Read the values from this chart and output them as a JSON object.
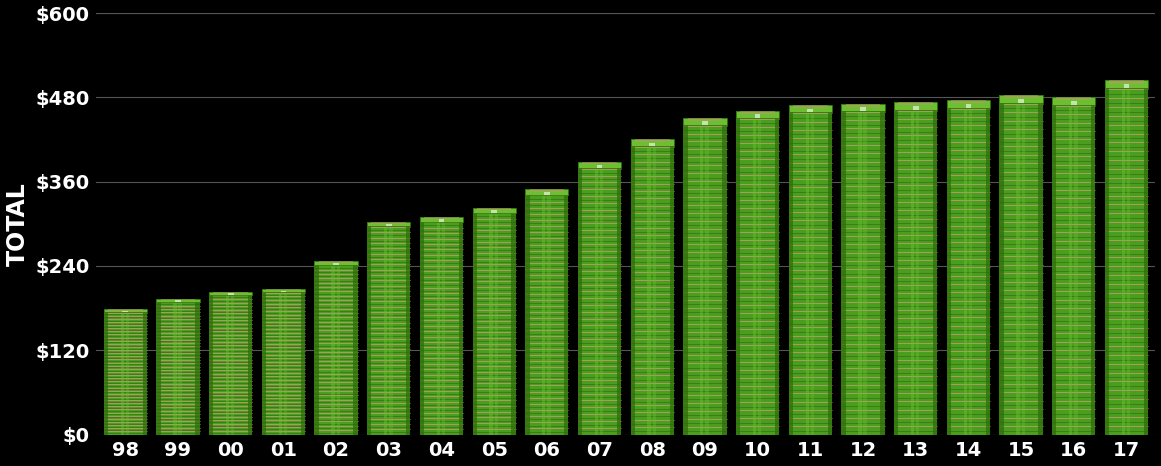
{
  "categories": [
    "98",
    "99",
    "00",
    "01",
    "02",
    "03",
    "04",
    "05",
    "06",
    "07",
    "08",
    "09",
    "10",
    "11",
    "12",
    "13",
    "14",
    "15",
    "16",
    "17"
  ],
  "values": [
    178,
    193,
    203,
    207,
    247,
    303,
    310,
    323,
    349,
    388,
    420,
    451,
    461,
    469,
    471,
    473,
    476,
    483,
    480,
    504
  ],
  "bar_color_main": "#4a9e1e",
  "bar_color_light": "#6bbf30",
  "bar_color_dark": "#2d6e0a",
  "bar_color_stripe_tan": "#b8996a",
  "bar_color_stripe_dark": "#1e5208",
  "bar_color_edge": "#1a4a05",
  "background_color": "#000000",
  "text_color": "#ffffff",
  "gridline_color": "#555555",
  "ylabel": "TOTAL",
  "ytick_labels": [
    "$0",
    "$120",
    "$240",
    "$360",
    "$480",
    "$600"
  ],
  "ytick_values": [
    0,
    120,
    240,
    360,
    480,
    600
  ],
  "ylim": [
    0,
    600
  ],
  "tick_fontsize": 14
}
